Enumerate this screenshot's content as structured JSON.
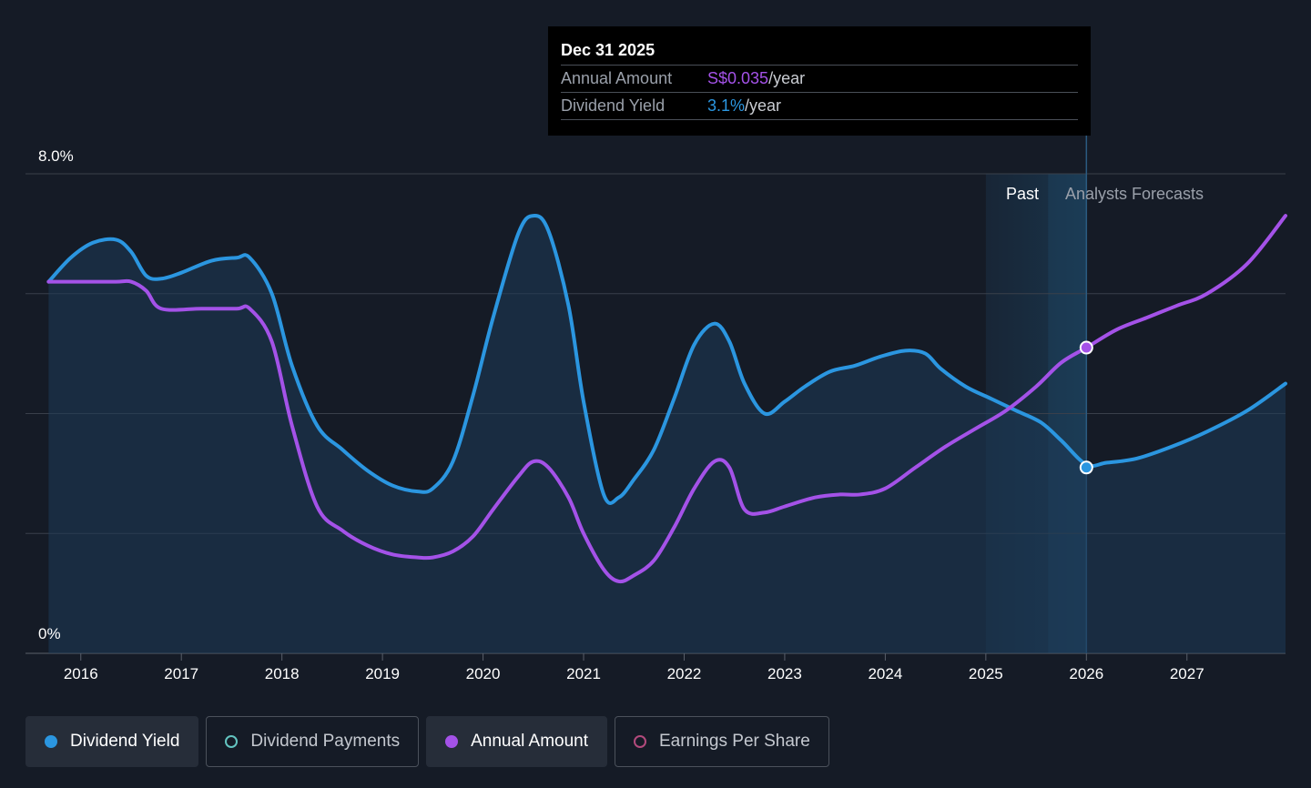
{
  "tooltip": {
    "date": "Dec 31 2025",
    "annual_amount_label": "Annual Amount",
    "annual_amount_value": "S$0.035",
    "annual_amount_unit": "/year",
    "dividend_yield_label": "Dividend Yield",
    "dividend_yield_value": "3.1%",
    "dividend_yield_unit": "/year"
  },
  "regions": {
    "past": "Past",
    "forecast": "Analysts Forecasts"
  },
  "legend": [
    {
      "label": "Dividend Yield",
      "active": true,
      "marker": "filled",
      "color": "#2b96e0"
    },
    {
      "label": "Dividend Payments",
      "active": false,
      "marker": "ring",
      "color": "#63c4c0"
    },
    {
      "label": "Annual Amount",
      "active": true,
      "marker": "filled",
      "color": "#a452e8"
    },
    {
      "label": "Earnings Per Share",
      "active": false,
      "marker": "ring",
      "color": "#b24a7c"
    }
  ],
  "colors": {
    "background": "#151b26",
    "dividend_yield": "#2b96e0",
    "annual_amount": "#a452e8",
    "grid": "#3a404b"
  },
  "chart_data": {
    "type": "line",
    "y_axis_labels": [
      "8.0%",
      "0%"
    ],
    "ylim": [
      0,
      8.0
    ],
    "x_ticks": [
      "2016",
      "2017",
      "2018",
      "2019",
      "2020",
      "2021",
      "2022",
      "2023",
      "2024",
      "2025",
      "2026",
      "2027"
    ],
    "xlim": [
      2015.45,
      2027.98
    ],
    "forecast_start": 2025.0,
    "tooltip_x": 2026.0,
    "series": [
      {
        "name": "Dividend Yield",
        "color": "#2b96e0",
        "filled": true,
        "x": [
          2015.68,
          2015.9,
          2016.12,
          2016.35,
          2016.5,
          2016.65,
          2016.8,
          2017.0,
          2017.3,
          2017.55,
          2017.68,
          2017.9,
          2018.1,
          2018.35,
          2018.6,
          2018.85,
          2019.1,
          2019.35,
          2019.5,
          2019.7,
          2019.9,
          2020.1,
          2020.35,
          2020.5,
          2020.65,
          2020.85,
          2021.0,
          2021.2,
          2021.35,
          2021.5,
          2021.7,
          2021.9,
          2022.1,
          2022.3,
          2022.45,
          2022.6,
          2022.8,
          2023.0,
          2023.2,
          2023.45,
          2023.7,
          2023.95,
          2024.2,
          2024.4,
          2024.55,
          2024.8,
          2025.05,
          2025.3,
          2025.55,
          2025.75,
          2026.0,
          2026.2,
          2026.5,
          2026.85,
          2027.2,
          2027.6,
          2027.98
        ],
        "values": [
          6.2,
          6.6,
          6.85,
          6.9,
          6.7,
          6.3,
          6.25,
          6.35,
          6.55,
          6.6,
          6.6,
          6.0,
          4.8,
          3.8,
          3.4,
          3.05,
          2.8,
          2.7,
          2.75,
          3.2,
          4.3,
          5.6,
          7.0,
          7.3,
          7.05,
          5.8,
          4.2,
          2.65,
          2.6,
          2.9,
          3.4,
          4.25,
          5.15,
          5.5,
          5.2,
          4.5,
          4.0,
          4.2,
          4.45,
          4.7,
          4.8,
          4.95,
          5.05,
          5.0,
          4.75,
          4.45,
          4.25,
          4.05,
          3.85,
          3.55,
          3.15,
          3.18,
          3.25,
          3.45,
          3.7,
          4.05,
          4.5
        ]
      },
      {
        "name": "Annual Amount",
        "color": "#a452e8",
        "filled": false,
        "x": [
          2015.68,
          2016.0,
          2016.35,
          2016.5,
          2016.65,
          2016.8,
          2017.2,
          2017.55,
          2017.68,
          2017.9,
          2018.1,
          2018.35,
          2018.6,
          2018.85,
          2019.1,
          2019.35,
          2019.5,
          2019.7,
          2019.9,
          2020.1,
          2020.35,
          2020.5,
          2020.65,
          2020.85,
          2021.0,
          2021.2,
          2021.35,
          2021.5,
          2021.7,
          2021.9,
          2022.1,
          2022.3,
          2022.45,
          2022.6,
          2022.8,
          2023.0,
          2023.3,
          2023.55,
          2023.75,
          2024.0,
          2024.3,
          2024.6,
          2024.9,
          2025.2,
          2025.5,
          2025.75,
          2026.0,
          2026.3,
          2026.6,
          2026.9,
          2027.2,
          2027.6,
          2027.98
        ],
        "values": [
          6.2,
          6.2,
          6.2,
          6.2,
          6.05,
          5.75,
          5.75,
          5.75,
          5.75,
          5.2,
          3.8,
          2.45,
          2.05,
          1.8,
          1.65,
          1.6,
          1.6,
          1.7,
          1.95,
          2.4,
          2.95,
          3.2,
          3.1,
          2.6,
          2.0,
          1.4,
          1.2,
          1.3,
          1.55,
          2.1,
          2.75,
          3.2,
          3.1,
          2.4,
          2.35,
          2.45,
          2.6,
          2.65,
          2.65,
          2.75,
          3.1,
          3.45,
          3.75,
          4.05,
          4.45,
          4.85,
          5.1,
          5.4,
          5.6,
          5.8,
          6.0,
          6.5,
          7.3
        ]
      }
    ],
    "markers": [
      {
        "series": "Annual Amount",
        "x": 2026.0,
        "value": 5.1
      },
      {
        "series": "Dividend Yield",
        "x": 2026.0,
        "value": 3.1
      }
    ]
  }
}
